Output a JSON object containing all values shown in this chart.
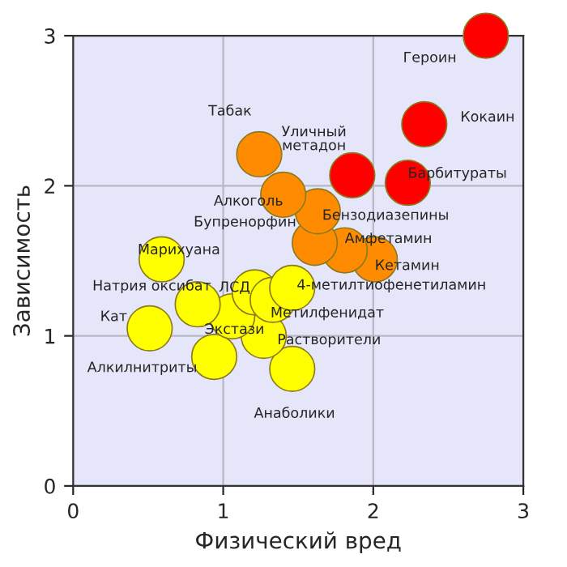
{
  "chart_data": {
    "type": "scatter",
    "xlabel": "Физический вред",
    "ylabel": "Зависимость",
    "xlim": [
      0,
      3
    ],
    "ylim": [
      0,
      3
    ],
    "xticks": [
      0,
      1,
      2,
      3
    ],
    "yticks": [
      0,
      1,
      2,
      3
    ],
    "grid": true,
    "marker": "circle",
    "series": [
      {
        "x": [
          2.75,
          2.34,
          2.23,
          1.86,
          1.24,
          1.4,
          1.63,
          1.61,
          1.81,
          2.01,
          1.46,
          1.33,
          1.21,
          0.83,
          0.59,
          0.51,
          1.06,
          1.27,
          0.94,
          1.46
        ],
        "values": [
          3.0,
          2.41,
          2.02,
          2.07,
          2.21,
          1.94,
          1.83,
          1.62,
          1.57,
          1.51,
          1.32,
          1.24,
          1.29,
          1.21,
          1.51,
          1.05,
          1.13,
          1.0,
          0.86,
          0.78
        ],
        "colors": [
          "#ff0000",
          "#ff0000",
          "#ff0000",
          "#ff0000",
          "#ff8c00",
          "#ff8c00",
          "#ff8c00",
          "#ff8c00",
          "#ff8c00",
          "#ff8c00",
          "#ffff00",
          "#ffff00",
          "#ffff00",
          "#ffff00",
          "#ffff00",
          "#ffff00",
          "#ffff00",
          "#ffff00",
          "#ffff00",
          "#ffff00"
        ]
      }
    ],
    "annotations": [
      {
        "text": "Героин",
        "x": 2.75,
        "y": 3.0
      },
      {
        "text": "Кокаин",
        "x": 2.34,
        "y": 2.41
      },
      {
        "text": "Барбитураты",
        "x": 2.23,
        "y": 2.02
      },
      {
        "text": "Уличный\nметадон",
        "x": 1.86,
        "y": 2.07
      },
      {
        "text": "Табак",
        "x": 1.24,
        "y": 2.21
      },
      {
        "text": "Алкоголь",
        "x": 1.4,
        "y": 1.94
      },
      {
        "text": "Бензодиазепины",
        "x": 1.63,
        "y": 1.83
      },
      {
        "text": "Бупренорфин",
        "x": 1.61,
        "y": 1.62
      },
      {
        "text": "Амфетамин",
        "x": 1.81,
        "y": 1.57
      },
      {
        "text": "Кетамин",
        "x": 2.01,
        "y": 1.51
      },
      {
        "text": "4-метилтиофенетиламин",
        "x": 1.46,
        "y": 1.32
      },
      {
        "text": "Метилфенидат",
        "x": 1.33,
        "y": 1.24
      },
      {
        "text": "ЛСД",
        "x": 1.21,
        "y": 1.29
      },
      {
        "text": "Натрия оксибат",
        "x": 0.83,
        "y": 1.21
      },
      {
        "text": "Марихуана",
        "x": 0.59,
        "y": 1.51
      },
      {
        "text": "Кат",
        "x": 0.51,
        "y": 1.05
      },
      {
        "text": "Экстази",
        "x": 1.06,
        "y": 1.13
      },
      {
        "text": "Растворители",
        "x": 1.27,
        "y": 1.0
      },
      {
        "text": "Алкилнитриты",
        "x": 0.94,
        "y": 0.86
      },
      {
        "text": "Анаболики",
        "x": 1.46,
        "y": 0.78
      }
    ]
  }
}
